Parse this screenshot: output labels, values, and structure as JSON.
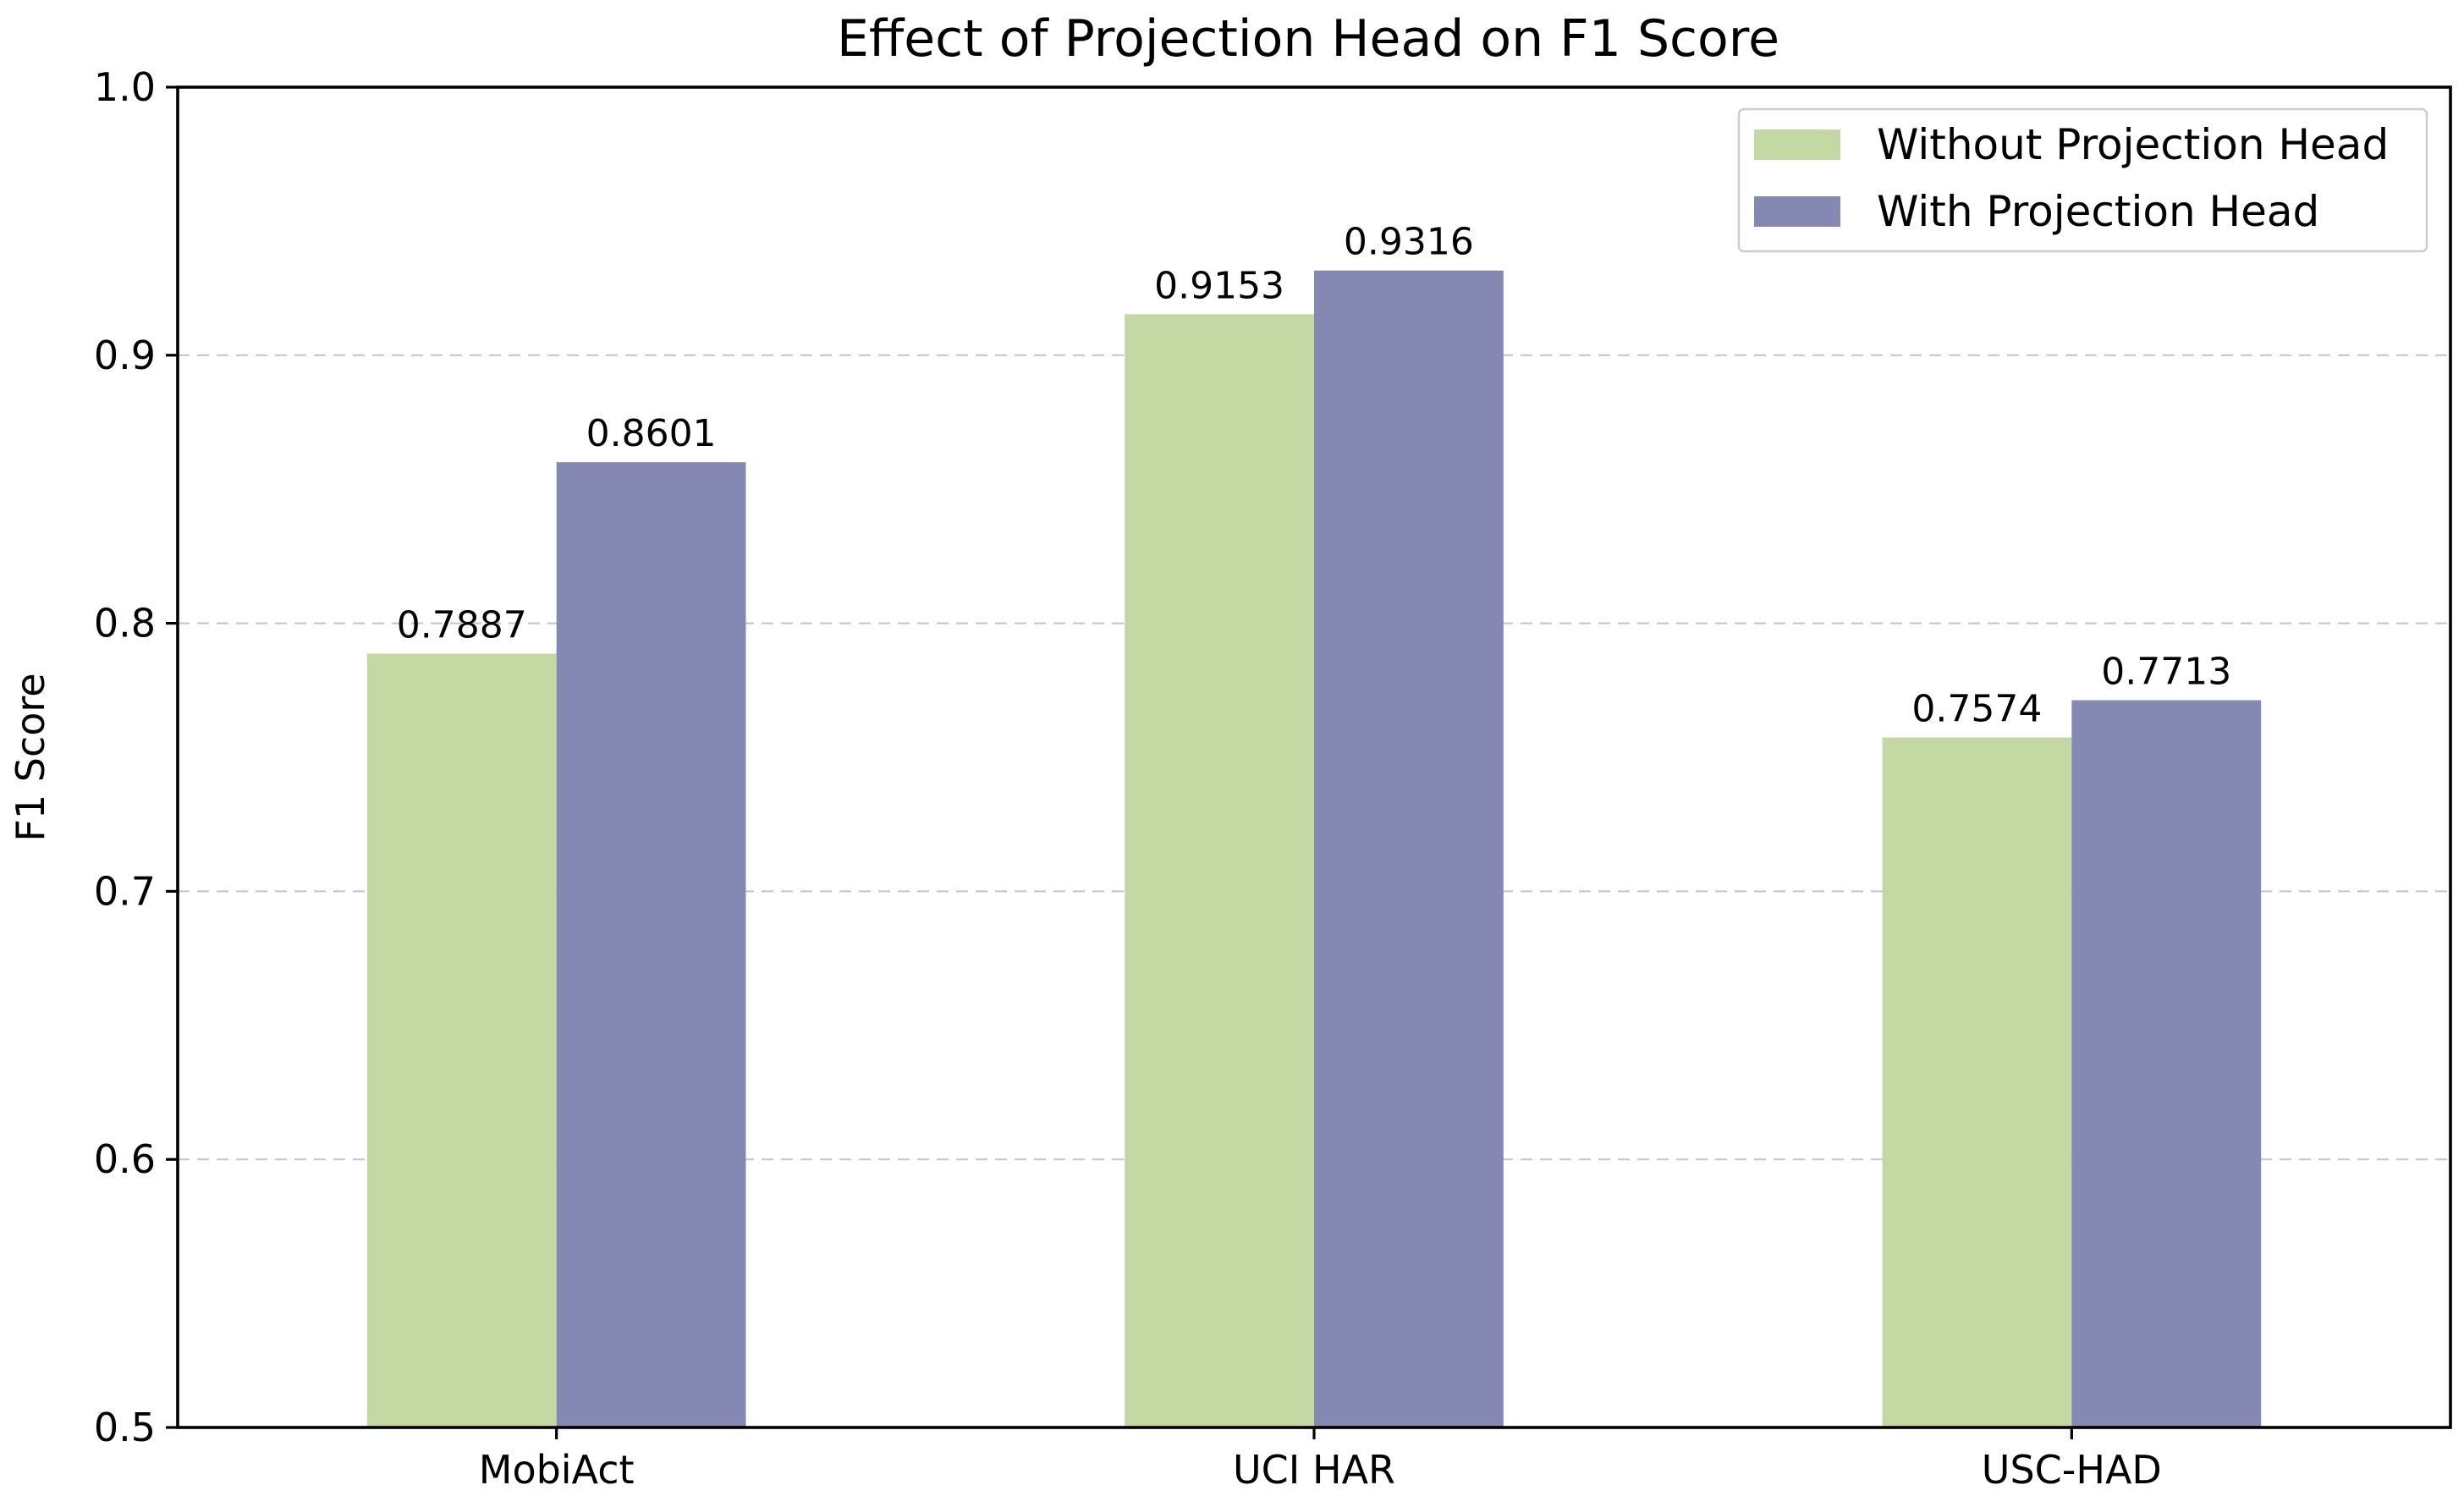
{
  "chart_data": {
    "type": "bar",
    "title": "Effect of Projection Head on F1 Score",
    "xlabel": "",
    "ylabel": "F1 Score",
    "ylim": [
      0.5,
      1.0
    ],
    "yticks": [
      "0.5",
      "0.6",
      "0.7",
      "0.8",
      "0.9",
      "1.0"
    ],
    "ytick_values": [
      0.5,
      0.6,
      0.7,
      0.8,
      0.9,
      1.0
    ],
    "categories": [
      "MobiAct",
      "UCI HAR",
      "USC-HAD"
    ],
    "series": [
      {
        "name": "Without Projection Head",
        "color": "#c4d8a4",
        "values": [
          0.7887,
          0.9153,
          0.7574
        ],
        "labels": [
          "0.7887",
          "0.9153",
          "0.7574"
        ]
      },
      {
        "name": "With Projection Head",
        "color": "#8488b2",
        "values": [
          0.8601,
          0.9316,
          0.7713
        ],
        "labels": [
          "0.8601",
          "0.9316",
          "0.7713"
        ]
      }
    ],
    "grid": "y-dashed",
    "legend_position": "top-right"
  }
}
